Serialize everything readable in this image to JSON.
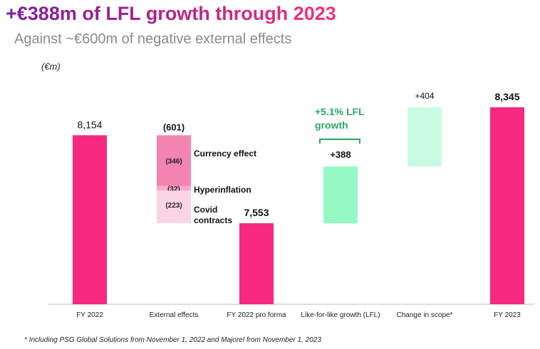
{
  "title": "+€388m of LFL growth through 2023",
  "subtitle": "Against ~€600m of negative external effects",
  "footnote": "* Including PSG Global Solutions from November 1, 2022 and Majorel from November 1, 2023",
  "chart_data": {
    "type": "waterfall",
    "unit_label": "(€m)",
    "axis_break_min": 7000,
    "categories": [
      "FY 2022",
      "External effects",
      "FY 2022 pro forma",
      "Like-for-like growth (LFL)",
      "Change in scope*",
      "FY 2023"
    ],
    "bars": [
      {
        "category": "FY 2022",
        "kind": "total",
        "value": 8154,
        "label": "8,154",
        "color": "#F7287F"
      },
      {
        "category": "External effects",
        "kind": "delta",
        "value": -601,
        "label": "(601)",
        "segments": [
          {
            "name": "Currency effect",
            "value": -346,
            "label": "(346)",
            "color": "#F484B0"
          },
          {
            "name": "Hyperinflation",
            "value": -32,
            "label": "(32)",
            "color": "#F8A9C9"
          },
          {
            "name": "Covid contracts",
            "value": -223,
            "label": "(223)",
            "color": "#FBD5E4"
          }
        ]
      },
      {
        "category": "FY 2022 pro forma",
        "kind": "total",
        "value": 7553,
        "label": "7,553",
        "color": "#F7287F"
      },
      {
        "category": "Like-for-like growth (LFL)",
        "kind": "delta",
        "value": 388,
        "label": "+388",
        "color": "#94F9C5"
      },
      {
        "category": "Change in scope*",
        "kind": "delta",
        "value": 404,
        "label": "+404",
        "color": "#C9FBE3"
      },
      {
        "category": "FY 2023",
        "kind": "total",
        "value": 8345,
        "label": "8,345",
        "color": "#F7287F"
      }
    ],
    "annotation": {
      "line1": "+5.1% LFL",
      "line2": "growth",
      "color": "#27A863"
    }
  }
}
